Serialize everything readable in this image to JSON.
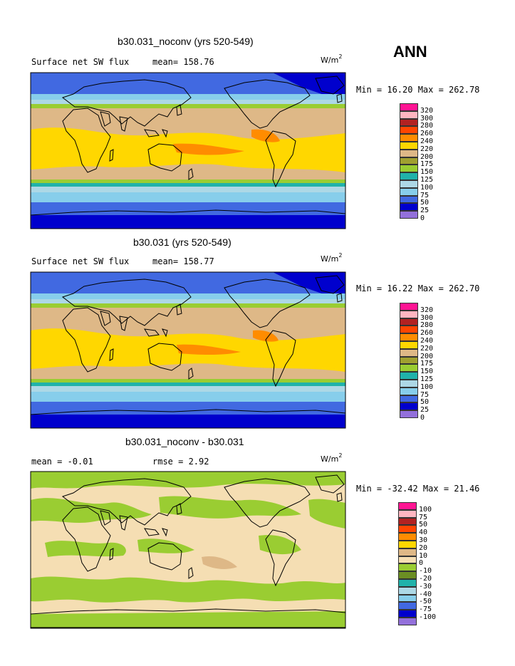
{
  "season": "ANN",
  "panels": [
    {
      "title": "b30.031_noconv (yrs 520-549)",
      "left_text": "Surface net SW flux",
      "right_text": "mean= 158.76",
      "units_base": "W/m",
      "units_exp": "2",
      "stats": "Min =  16.20 Max = 262.78",
      "kind": "field"
    },
    {
      "title": "b30.031 (yrs 520-549)",
      "left_text": "Surface net SW flux",
      "right_text": "mean= 158.77",
      "units_base": "W/m",
      "units_exp": "2",
      "stats": "Min =  16.22 Max = 262.70",
      "kind": "field"
    },
    {
      "title": "b30.031_noconv - b30.031",
      "left_text": "mean =  -0.01",
      "right_text": "rmse =   2.92",
      "units_base": "W/m",
      "units_exp": "2",
      "stats": "Min = -32.42 Max =  21.46",
      "kind": "diff"
    }
  ],
  "legend_field": {
    "labels": [
      "320",
      "300",
      "280",
      "260",
      "240",
      "220",
      "200",
      "175",
      "150",
      "125",
      "100",
      "75",
      "50",
      "25",
      "0"
    ],
    "colors": [
      "#ff1493",
      "#ffb6c1",
      "#b22222",
      "#ff4500",
      "#ff8c00",
      "#ffd700",
      "#deb887",
      "#a0a030",
      "#9acd32",
      "#20b2aa",
      "#add8e6",
      "#87ceeb",
      "#4169e1",
      "#0000cd",
      "#9370db"
    ]
  },
  "legend_diff": {
    "labels": [
      "100",
      "75",
      "50",
      "40",
      "30",
      "20",
      "10",
      "0",
      "-10",
      "-20",
      "-30",
      "-40",
      "-50",
      "-75",
      "-100"
    ],
    "colors": [
      "#ff1493",
      "#ffb6c1",
      "#b22222",
      "#ff4500",
      "#ff8c00",
      "#ffd700",
      "#deb887",
      "#f5deb3",
      "#9acd32",
      "#6b8e23",
      "#20b2aa",
      "#add8e6",
      "#87ceeb",
      "#4169e1",
      "#0000cd",
      "#9370db"
    ]
  }
}
